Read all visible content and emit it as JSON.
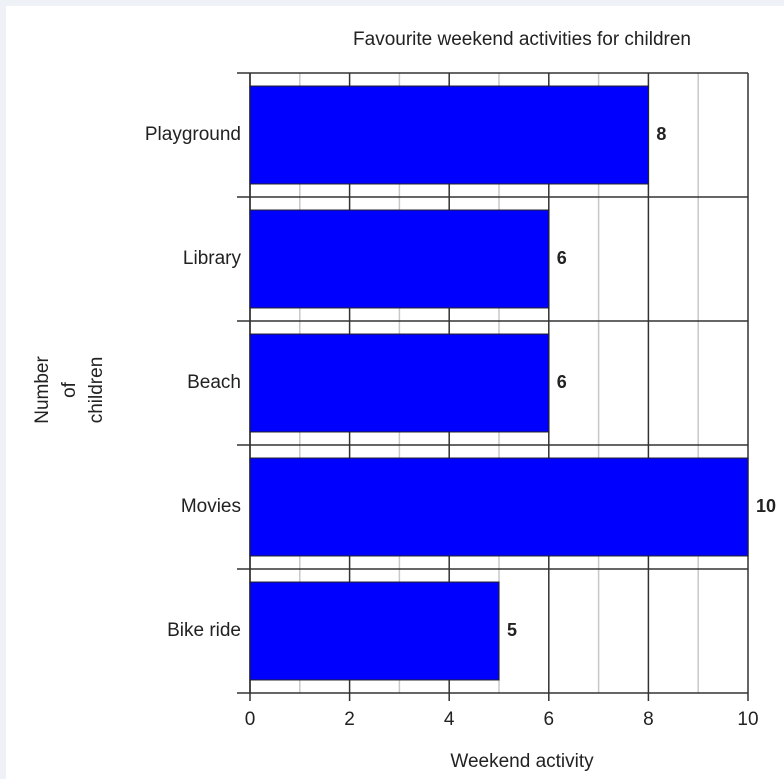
{
  "chart_data": {
    "type": "bar",
    "orientation": "horizontal",
    "title": "Favourite weekend activities for children",
    "x_label": "Weekend activity",
    "y_label_lines": [
      "Number",
      "of",
      "children"
    ],
    "categories": [
      "Playground",
      "Library",
      "Beach",
      "Movies",
      "Bike ride"
    ],
    "values": [
      8,
      6,
      6,
      10,
      5
    ],
    "color": "#0000ff",
    "xlim": [
      0,
      10
    ],
    "xticks": [
      0,
      2,
      4,
      6,
      8,
      10
    ],
    "xminorticks": [
      1,
      3,
      5,
      7,
      9
    ],
    "grid": true
  }
}
